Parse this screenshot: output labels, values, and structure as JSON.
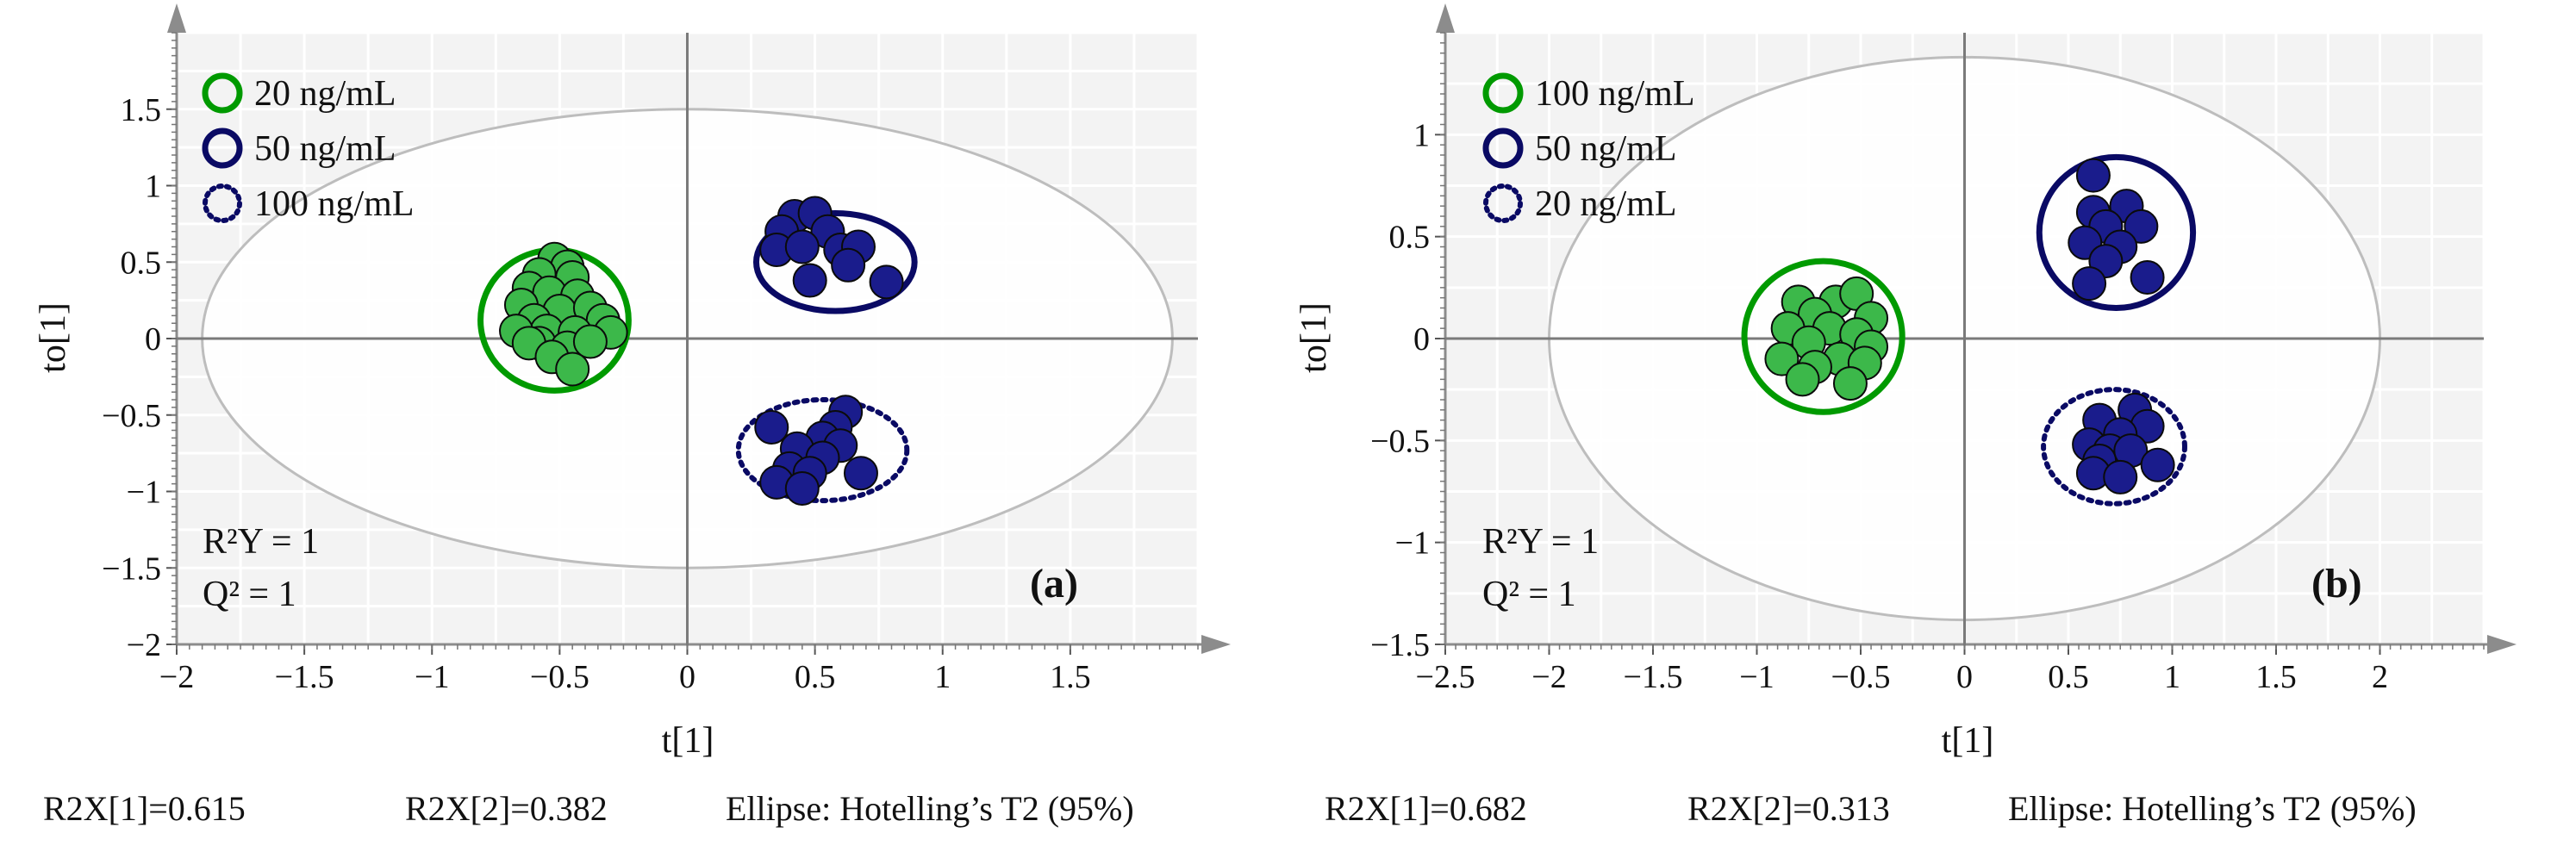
{
  "chart_data": [
    {
      "type": "scatter",
      "panel_label": "(a)",
      "xlabel": "t[1]",
      "ylabel": "to[1]",
      "xlim": [
        -2,
        2
      ],
      "ylim": [
        -2,
        2
      ],
      "x_ticks": [
        "−2",
        "−1.5",
        "−1",
        "−0.5",
        "0",
        "0.5",
        "1",
        "1.5"
      ],
      "y_ticks": [
        "−2",
        "−1.5",
        "−1",
        "−0.5",
        "0",
        "0.5",
        "1",
        "1.5"
      ],
      "grid": true,
      "legend_position": "top-left",
      "hotelling_ellipse": {
        "rx": 1.9,
        "ry": 1.5
      },
      "stats": {
        "r2y": "R²Y = 1",
        "q2": "Q² = 1"
      },
      "footer": [
        "R2X[1]=0.615",
        "R2X[2]=0.382",
        "Ellipse: Hotelling’s T2 (95%)"
      ],
      "series": [
        {
          "name": "20 ng/mL",
          "fill": "#3cb84a",
          "stroke": "#009a00",
          "ellipse": "solid",
          "group_ellipse": {
            "cx": -0.52,
            "cy": 0.12,
            "rx": 0.29,
            "ry": 0.46
          },
          "points": [
            [
              -0.52,
              0.52
            ],
            [
              -0.47,
              0.47
            ],
            [
              -0.58,
              0.42
            ],
            [
              -0.45,
              0.4
            ],
            [
              -0.62,
              0.33
            ],
            [
              -0.54,
              0.3
            ],
            [
              -0.43,
              0.28
            ],
            [
              -0.65,
              0.22
            ],
            [
              -0.5,
              0.18
            ],
            [
              -0.38,
              0.2
            ],
            [
              -0.6,
              0.12
            ],
            [
              -0.33,
              0.12
            ],
            [
              -0.55,
              0.05
            ],
            [
              -0.44,
              0.04
            ],
            [
              -0.67,
              0.05
            ],
            [
              -0.3,
              0.04
            ],
            [
              -0.58,
              -0.03
            ],
            [
              -0.47,
              -0.06
            ],
            [
              -0.62,
              -0.03
            ],
            [
              -0.38,
              -0.02
            ],
            [
              -0.53,
              -0.12
            ],
            [
              -0.45,
              -0.2
            ]
          ]
        },
        {
          "name": "50 ng/mL",
          "fill": "#1a1c8c",
          "stroke": "#0a0a64",
          "ellipse": "solid",
          "group_ellipse": {
            "cx": 0.58,
            "cy": 0.5,
            "rx": 0.31,
            "ry": 0.32
          },
          "points": [
            [
              0.42,
              0.8
            ],
            [
              0.5,
              0.82
            ],
            [
              0.37,
              0.7
            ],
            [
              0.55,
              0.7
            ],
            [
              0.35,
              0.58
            ],
            [
              0.45,
              0.6
            ],
            [
              0.6,
              0.58
            ],
            [
              0.67,
              0.6
            ],
            [
              0.63,
              0.48
            ],
            [
              0.48,
              0.38
            ],
            [
              0.78,
              0.37
            ]
          ]
        },
        {
          "name": "100 ng/mL",
          "fill": "#1a1c8c",
          "stroke": "#0a0a64",
          "ellipse": "dotted",
          "group_ellipse": {
            "cx": 0.53,
            "cy": -0.73,
            "rx": 0.33,
            "ry": 0.33
          },
          "points": [
            [
              0.62,
              -0.48
            ],
            [
              0.33,
              -0.58
            ],
            [
              0.58,
              -0.58
            ],
            [
              0.53,
              -0.65
            ],
            [
              0.43,
              -0.72
            ],
            [
              0.6,
              -0.7
            ],
            [
              0.53,
              -0.78
            ],
            [
              0.4,
              -0.85
            ],
            [
              0.48,
              -0.88
            ],
            [
              0.68,
              -0.88
            ],
            [
              0.35,
              -0.94
            ],
            [
              0.45,
              -0.98
            ]
          ]
        }
      ]
    },
    {
      "type": "scatter",
      "panel_label": "(b)",
      "xlabel": "t[1]",
      "ylabel": "to[1]",
      "xlim": [
        -2.5,
        2.5
      ],
      "ylim": [
        -1.5,
        1.5
      ],
      "x_ticks": [
        "−2.5",
        "−2",
        "−1.5",
        "−1",
        "−0.5",
        "0",
        "0.5",
        "1",
        "1.5",
        "2"
      ],
      "y_ticks": [
        "−1.5",
        "−1",
        "−0.5",
        "0",
        "0.5",
        "1"
      ],
      "grid": true,
      "legend_position": "top-left",
      "hotelling_ellipse": {
        "rx": 2.0,
        "ry": 1.38
      },
      "stats": {
        "r2y": "R²Y = 1",
        "q2": "Q² = 1"
      },
      "footer": [
        "R2X[1]=0.682",
        "R2X[2]=0.313",
        "Ellipse: Hotelling’s T2 (95%)"
      ],
      "series": [
        {
          "name": "100 ng/mL",
          "fill": "#3cb84a",
          "stroke": "#009a00",
          "ellipse": "solid",
          "group_ellipse": {
            "cx": -0.68,
            "cy": 0.01,
            "rx": 0.38,
            "ry": 0.37
          },
          "points": [
            [
              -0.8,
              0.18
            ],
            [
              -0.62,
              0.18
            ],
            [
              -0.52,
              0.22
            ],
            [
              -0.72,
              0.12
            ],
            [
              -0.45,
              0.1
            ],
            [
              -0.85,
              0.05
            ],
            [
              -0.65,
              0.05
            ],
            [
              -0.52,
              0.02
            ],
            [
              -0.75,
              -0.02
            ],
            [
              -0.45,
              -0.04
            ],
            [
              -0.88,
              -0.1
            ],
            [
              -0.6,
              -0.1
            ],
            [
              -0.48,
              -0.12
            ],
            [
              -0.72,
              -0.14
            ],
            [
              -0.55,
              -0.22
            ],
            [
              -0.78,
              -0.2
            ]
          ]
        },
        {
          "name": "50 ng/mL",
          "fill": "#1a1c8c",
          "stroke": "#0a0a64",
          "ellipse": "solid",
          "group_ellipse": {
            "cx": 0.73,
            "cy": 0.52,
            "rx": 0.37,
            "ry": 0.37
          },
          "points": [
            [
              0.62,
              0.8
            ],
            [
              0.78,
              0.65
            ],
            [
              0.62,
              0.62
            ],
            [
              0.68,
              0.55
            ],
            [
              0.85,
              0.55
            ],
            [
              0.58,
              0.47
            ],
            [
              0.75,
              0.45
            ],
            [
              0.68,
              0.38
            ],
            [
              0.6,
              0.27
            ],
            [
              0.88,
              0.3
            ]
          ]
        },
        {
          "name": "20 ng/mL",
          "fill": "#1a1c8c",
          "stroke": "#0a0a64",
          "ellipse": "dotted",
          "group_ellipse": {
            "cx": 0.72,
            "cy": -0.53,
            "rx": 0.34,
            "ry": 0.28
          },
          "points": [
            [
              0.82,
              -0.35
            ],
            [
              0.65,
              -0.4
            ],
            [
              0.88,
              -0.43
            ],
            [
              0.75,
              -0.47
            ],
            [
              0.6,
              -0.52
            ],
            [
              0.7,
              -0.55
            ],
            [
              0.8,
              -0.55
            ],
            [
              0.65,
              -0.6
            ],
            [
              0.93,
              -0.62
            ],
            [
              0.62,
              -0.66
            ],
            [
              0.75,
              -0.68
            ]
          ]
        }
      ]
    }
  ]
}
